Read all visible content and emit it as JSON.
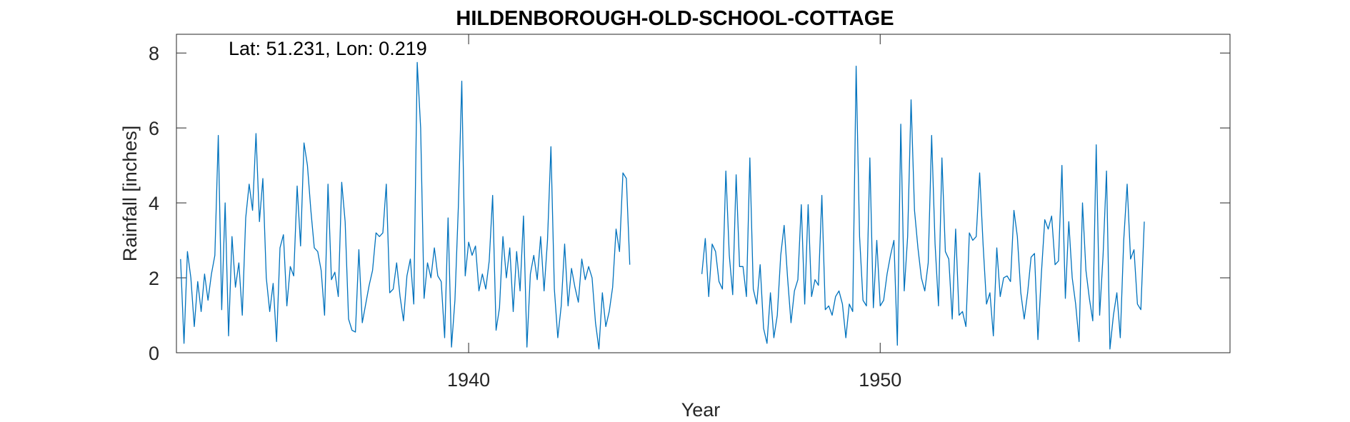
{
  "chart_data": {
    "type": "line",
    "title": "HILDENBOROUGH-OLD-SCHOOL-COTTAGE",
    "xlabel": "Year",
    "ylabel": "Rainfall [inches]",
    "annotation": "Lat: 51.231, Lon: 0.219",
    "xlim": [
      1932.9,
      1958.5
    ],
    "ylim": [
      0,
      8.5
    ],
    "xticks": [
      1940,
      1950
    ],
    "yticks": [
      0,
      2,
      4,
      6,
      8
    ],
    "grid": false,
    "line_color": "#0072BD",
    "series": [
      {
        "start": [
          1933,
          1
        ],
        "values": [
          2.5,
          0.25,
          2.7,
          2.0,
          0.7,
          1.9,
          1.1,
          2.1,
          1.4,
          2.1,
          2.6,
          5.8,
          1.15,
          4.0,
          0.45,
          3.1,
          1.75,
          2.4,
          1.0,
          3.6,
          4.5,
          3.8,
          5.85,
          3.5,
          4.65,
          2.0,
          1.1,
          1.85,
          0.3,
          2.8,
          3.15,
          1.25,
          2.3,
          2.05,
          4.45,
          2.85,
          5.6,
          5.0,
          3.8,
          2.8,
          2.7,
          2.2,
          1.0,
          4.5,
          1.95,
          2.15,
          1.5,
          4.55,
          3.5,
          0.9,
          0.6,
          0.55,
          2.75,
          0.8,
          1.3,
          1.8,
          2.2,
          3.2,
          3.1,
          3.2,
          4.5,
          1.6,
          1.7,
          2.4,
          1.5,
          0.85,
          2.05,
          2.5,
          1.3,
          7.75,
          6.0,
          1.45,
          2.4,
          2.0,
          2.8,
          2.05,
          1.9,
          0.4,
          3.6,
          0.15,
          1.4,
          3.9,
          7.25,
          2.05,
          2.95,
          2.6,
          2.85,
          1.65,
          2.1,
          1.7,
          2.45,
          4.2,
          0.6,
          1.2,
          3.1,
          2.0,
          2.8,
          1.1,
          2.7,
          1.65,
          3.65,
          0.15,
          2.1,
          2.6,
          1.95,
          3.1,
          1.65,
          3.0,
          5.5,
          1.7,
          0.4,
          1.25,
          2.9,
          1.25,
          2.25,
          1.75,
          1.35,
          2.5,
          1.95,
          2.3,
          2.0,
          0.8,
          0.1,
          1.6,
          0.7,
          1.1,
          1.75,
          3.3,
          2.7,
          4.8,
          4.65,
          2.35
        ]
      },
      {
        "start": [
          1945,
          9
        ],
        "values": [
          2.1,
          3.05,
          1.5,
          2.9,
          2.7,
          1.9,
          1.7,
          4.85,
          2.6,
          1.55,
          4.75,
          2.3,
          2.3,
          1.5,
          5.2,
          1.7,
          1.3,
          2.35,
          0.65,
          0.25,
          1.6,
          0.4,
          1.0,
          2.6,
          3.4,
          2.0,
          0.8,
          1.65,
          1.95,
          3.95,
          1.3,
          3.95,
          1.5,
          1.95,
          1.8,
          4.2,
          1.15,
          1.25,
          1.0,
          1.5,
          1.65,
          1.3,
          0.4,
          1.3,
          1.1,
          7.65,
          3.1,
          1.4,
          1.25,
          5.2,
          1.2,
          3.0,
          1.25,
          1.4,
          2.1,
          2.6,
          3.0,
          0.2,
          6.1,
          1.65,
          3.1,
          6.75,
          3.8,
          2.8,
          2.0,
          1.65,
          2.4,
          5.8,
          2.9,
          1.25,
          5.2,
          2.7,
          2.5,
          0.9,
          3.3,
          1.0,
          1.1,
          0.7,
          3.2,
          3.0,
          3.1,
          4.8,
          2.9,
          1.3,
          1.6,
          0.45,
          2.8,
          1.5,
          2.0,
          2.05,
          1.9,
          3.8,
          3.1,
          1.6,
          0.9,
          1.6,
          2.55,
          2.65,
          0.35,
          2.1,
          3.55,
          3.3,
          3.65,
          2.35,
          2.45,
          5.0,
          1.45,
          3.5,
          2.0,
          1.3,
          0.3,
          4.0,
          2.2,
          1.45,
          0.85,
          5.55,
          1.0,
          2.6,
          4.85,
          0.1,
          1.0,
          1.6,
          0.4,
          3.0,
          4.5,
          2.5,
          2.75,
          1.3,
          1.15,
          3.5
        ]
      }
    ]
  }
}
